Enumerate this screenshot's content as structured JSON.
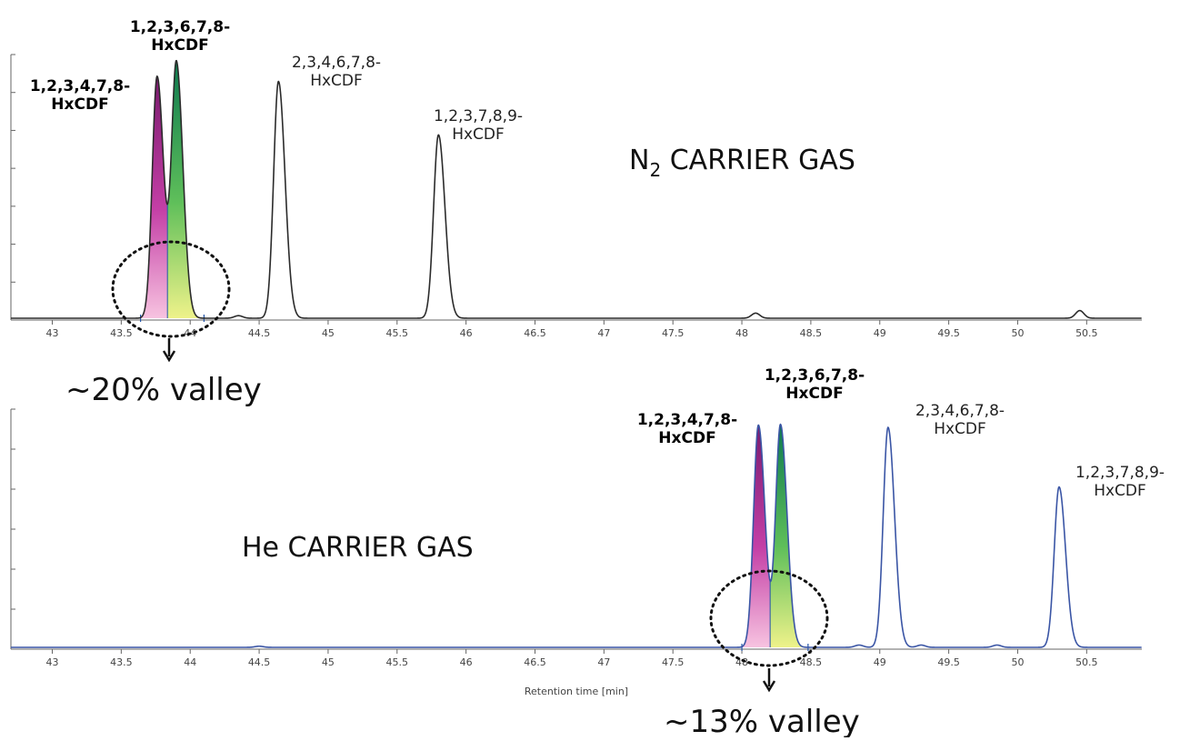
{
  "chart_data": [
    {
      "type": "line",
      "id": "n2",
      "gas_label": {
        "text": "N",
        "sub": "2",
        "rest": " CARRIER GAS"
      },
      "xlim": [
        42.7,
        50.9
      ],
      "xticks": [
        43,
        43.5,
        44,
        44.5,
        45,
        45.5,
        46,
        46.5,
        47,
        47.5,
        48,
        48.5,
        49,
        49.5,
        50,
        50.5
      ],
      "xtick_labels": [
        "43",
        "43.5",
        "44",
        "44.5",
        "45",
        "45.5",
        "46",
        "46.5",
        "47",
        "47.5",
        "48",
        "48.5",
        "49",
        "49.5",
        "50",
        "50.5"
      ],
      "line_color": "#2b2b2b",
      "peaks": [
        {
          "label": "1,2,3,4,7,8-\nHxCDF",
          "rt": 43.76,
          "height": 0.95,
          "bold": true,
          "fill": "magenta"
        },
        {
          "label": "1,2,3,6,7,8-\nHxCDF",
          "rt": 43.9,
          "height": 1.0,
          "bold": true,
          "fill": "green"
        },
        {
          "label": "2,3,4,6,7,8-\nHxCDF",
          "rt": 44.64,
          "height": 0.93,
          "bold": false
        },
        {
          "label": "1,2,3,7,8,9-\nHxCDF",
          "rt": 45.8,
          "height": 0.72,
          "bold": false
        }
      ],
      "minor_peaks": [
        {
          "rt": 44.35,
          "height": 0.01
        },
        {
          "rt": 48.1,
          "height": 0.02
        },
        {
          "rt": 50.45,
          "height": 0.03
        }
      ],
      "valley_annotation": "~20% valley"
    },
    {
      "type": "line",
      "id": "he",
      "gas_label": {
        "text": "He CARRIER GAS"
      },
      "xlim": [
        42.7,
        50.9
      ],
      "xticks": [
        43,
        43.5,
        44,
        44.5,
        45,
        45.5,
        46,
        46.5,
        47,
        47.5,
        48,
        48.5,
        49,
        49.5,
        50,
        50.5
      ],
      "xtick_labels": [
        "43",
        "43.5",
        "44",
        "44.5",
        "45",
        "45.5",
        "46",
        "46.5",
        "47",
        "47.5",
        "48",
        "48.5",
        "49",
        "49.5",
        "50",
        "50.5"
      ],
      "xlabel": "Retention time [min]",
      "line_color": "#3a55a5",
      "peaks": [
        {
          "label": "1,2,3,4,7,8-\nHxCDF",
          "rt": 48.12,
          "height": 0.97,
          "bold": true,
          "fill": "magenta"
        },
        {
          "label": "1,2,3,6,7,8-\nHxCDF",
          "rt": 48.28,
          "height": 0.97,
          "bold": true,
          "fill": "green"
        },
        {
          "label": "2,3,4,6,7,8-\nHxCDF",
          "rt": 49.06,
          "height": 0.96,
          "bold": false
        },
        {
          "label": "1,2,3,7,8,9-\nHxCDF",
          "rt": 50.3,
          "height": 0.7,
          "bold": false
        }
      ],
      "minor_peaks": [
        {
          "rt": 44.5,
          "height": 0.005
        },
        {
          "rt": 48.85,
          "height": 0.01
        },
        {
          "rt": 49.3,
          "height": 0.01
        },
        {
          "rt": 49.85,
          "height": 0.01
        }
      ],
      "valley_annotation": "~13% valley"
    }
  ]
}
